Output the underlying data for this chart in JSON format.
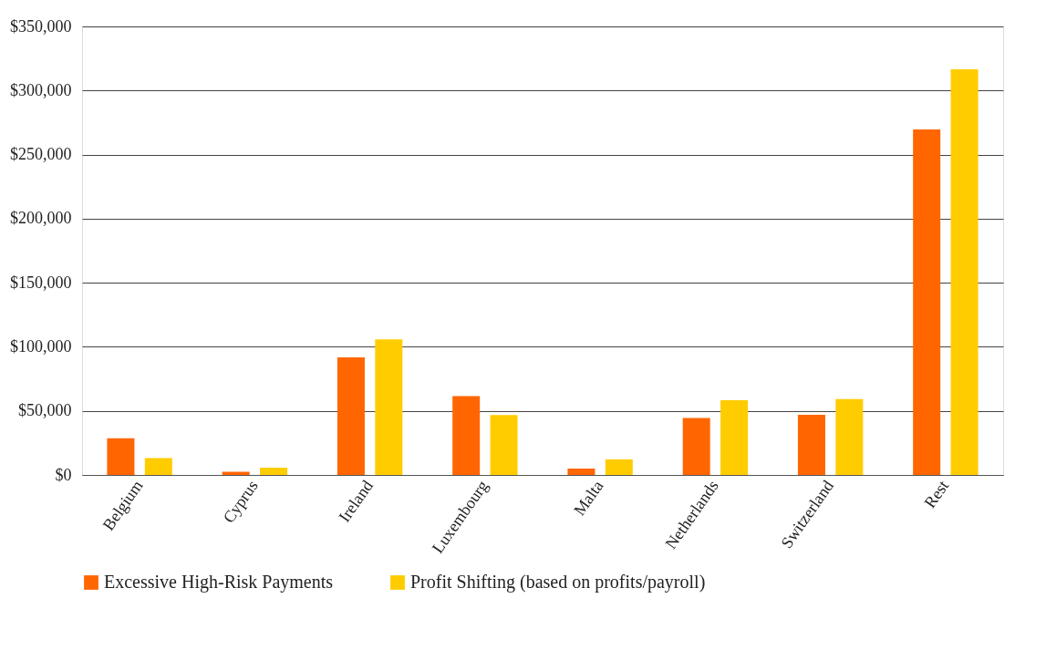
{
  "chart_data": {
    "type": "bar",
    "categories": [
      "Belgium",
      "Cyprus",
      "Ireland",
      "Luxembourg",
      "Malta",
      "Netherlands",
      "Switzerland",
      "Rest"
    ],
    "series": [
      {
        "name": "Excessive High-Risk Payments",
        "color": "#ff6600",
        "values": [
          28700,
          2500,
          91800,
          61600,
          5000,
          44400,
          46900,
          269600
        ]
      },
      {
        "name": "Profit Shifting (based on profits/payroll)",
        "color": "#ffcc00",
        "values": [
          13200,
          5700,
          105800,
          46700,
          12200,
          58300,
          59200,
          316600
        ]
      }
    ],
    "ylim": [
      0,
      350000
    ],
    "yticks": [
      {
        "value": 0,
        "label": "$0"
      },
      {
        "value": 50000,
        "label": "$50,000"
      },
      {
        "value": 100000,
        "label": "$100,000"
      },
      {
        "value": 150000,
        "label": "$150,000"
      },
      {
        "value": 200000,
        "label": "$200,000"
      },
      {
        "value": 250000,
        "label": "$250,000"
      },
      {
        "value": 300000,
        "label": "$300,000"
      },
      {
        "value": 350000,
        "label": "$350,000"
      }
    ],
    "grid": "y",
    "legend": "bottom"
  }
}
